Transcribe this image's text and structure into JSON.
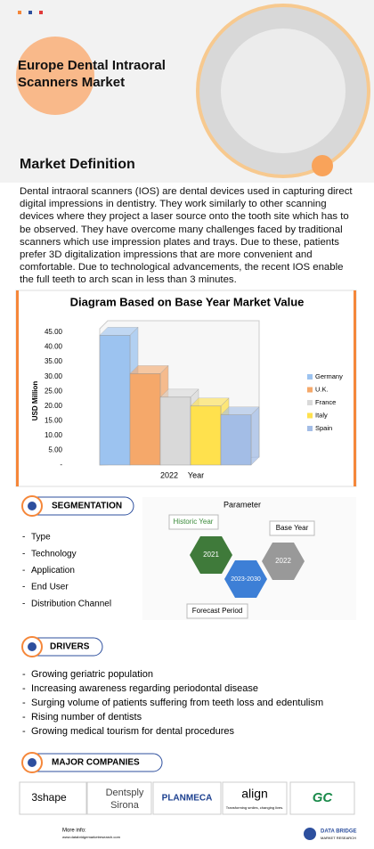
{
  "header": {
    "title": "Europe Dental Intraoral Scanners Market"
  },
  "definition": {
    "heading": "Market Definition",
    "text": "Dental intraoral scanners (IOS) are dental devices used in capturing direct digital impressions in dentistry. They work similarly to other scanning devices where they project a laser source onto the tooth site which has to be observed. They have overcome many challenges faced by traditional scanners which use impression plates and trays. Due to these, patients prefer 3D digitalization impressions that are more convenient and comfortable. Due to technological advancements, the recent IOS enable the full teeth to arch scan in less than 3 minutes."
  },
  "chart_data": {
    "type": "bar",
    "title": "Diagram Based on Base Year Market Value",
    "categories": [
      "2022"
    ],
    "x_label": "Year",
    "y_label": "USD Million",
    "series": [
      {
        "name": "Germany",
        "color": "#9cc3f0",
        "values": [
          44
        ]
      },
      {
        "name": "U.K.",
        "color": "#f5a86a",
        "values": [
          31
        ]
      },
      {
        "name": "France",
        "color": "#d9d9d9",
        "values": [
          23
        ]
      },
      {
        "name": "Italy",
        "color": "#ffe14d",
        "values": [
          20
        ]
      },
      {
        "name": "Spain",
        "color": "#a3bde6",
        "values": [
          17
        ]
      }
    ],
    "ylim": [
      0,
      45
    ],
    "yticks": [
      {
        "value": 0,
        "label": "-"
      },
      {
        "value": 5,
        "label": "5.00"
      },
      {
        "value": 10,
        "label": "10.00"
      },
      {
        "value": 15,
        "label": "15.00"
      },
      {
        "value": 20,
        "label": "20.00"
      },
      {
        "value": 25,
        "label": "25.00"
      },
      {
        "value": 30,
        "label": "30.00"
      },
      {
        "value": 35,
        "label": "35.00"
      },
      {
        "value": 40,
        "label": "40.00"
      },
      {
        "value": 45,
        "label": "45.00"
      }
    ],
    "grid": false,
    "legend": "right"
  },
  "segmentation": {
    "heading": "SEGMENTATION",
    "items": [
      "Type",
      "Technology",
      "Application",
      "End User",
      "Distribution Channel"
    ]
  },
  "parameter": {
    "title": "Parameter",
    "historic_label": "Historic Year",
    "historic_year": "2021",
    "base_label": "Base Year",
    "base_year": "2022",
    "forecast_label": "Forecast Period",
    "forecast_years": "2023-2030"
  },
  "drivers": {
    "heading": "DRIVERS",
    "items": [
      "Growing geriatric population",
      "Increasing awareness regarding periodontal disease",
      "Surging volume of patients suffering from teeth loss and edentulism",
      "Rising number of dentists",
      "Growing medical tourism for dental procedures"
    ]
  },
  "companies": {
    "heading": "MAJOR COMPANIES",
    "shape": "3shape",
    "dentsply": "Dentsply",
    "sirona": "Sirona",
    "planmeca": "PLANMECA",
    "align": "align",
    "align_tagline": "Transforming smiles, changing lives.",
    "gc": "GC"
  },
  "footer": {
    "more_info": "More info:",
    "url": "www.databridgemarketresearch.com",
    "brand": "DATA BRIDGE",
    "brand_sub": "MARKET RESEARCH"
  }
}
